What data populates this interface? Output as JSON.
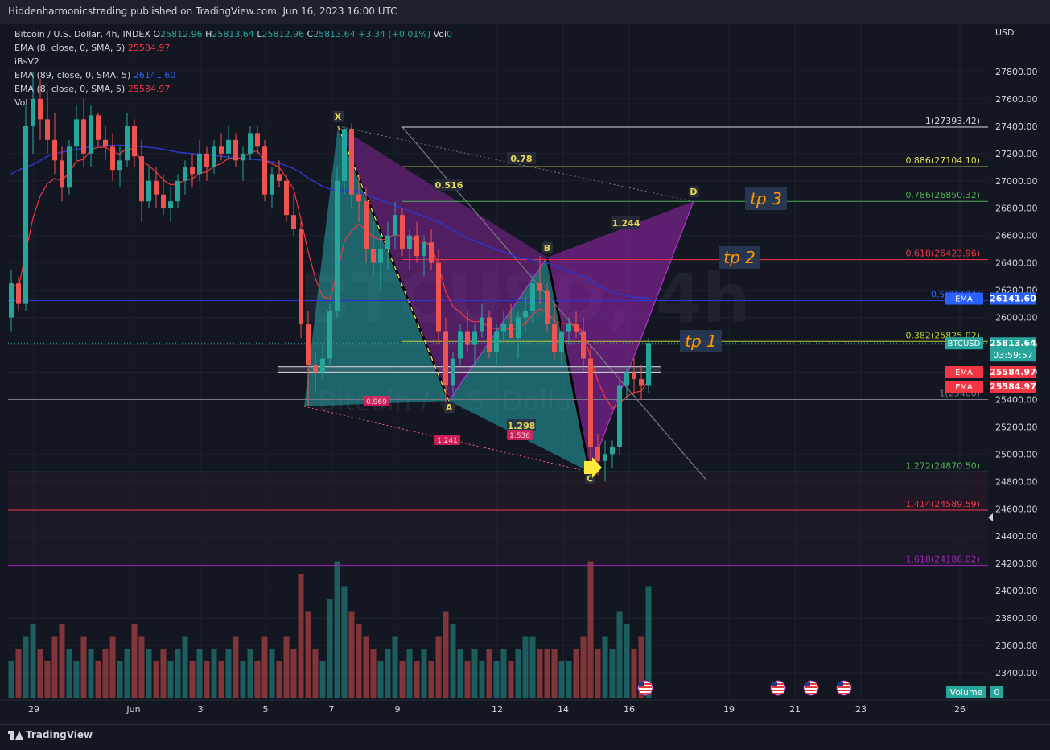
{
  "header": {
    "published": "Hiddenharmonicstrading published on TradingView.com, Jun 16, 2023 16:00 UTC"
  },
  "legend": {
    "symbol": "Bitcoin / U.S. Dollar, 4h, INDEX",
    "o_label": "O",
    "o_value": "25812.96",
    "h_label": "H",
    "h_value": "25813.64",
    "l_label": "L",
    "l_value": "25812.96",
    "c_label": "C",
    "c_value": "25813.64",
    "change": "+3.34 (+0.01%)",
    "vol_label": "Vol",
    "vol_value": "0",
    "ema1_label": "EMA (8, close, 0, SMA, 5)",
    "ema1_value": "25584.97",
    "ibs_label": "iBsV2",
    "ema2_label": "EMA (89, close, 0, SMA, 5)",
    "ema2_value": "26141.60",
    "ema3_label": "EMA (8, close, 0, SMA, 5)",
    "ema3_value": "25584.97",
    "vol2_label": "Vol",
    "vol2_value": "0"
  },
  "footer": {
    "brand": "TradingView"
  },
  "colors": {
    "background": "#131722",
    "up": "#26a69a",
    "down": "#ef5350",
    "ema89": "#2e35c9",
    "ema8": "#f23645",
    "pattern_cyan": "#26a6a6",
    "pattern_purple": "#9c27b0",
    "fib_white": "#d1d4dc",
    "fib_yellow": "#e5d85a",
    "fib_green": "#4caf50",
    "fib_red": "#f23645",
    "fib_purple": "#9c27b0",
    "target_orange": "#ff9800"
  },
  "watermark": {
    "symbol": "BTCUSD, 4h",
    "name": "Bitcoin / U.S. Dollar"
  },
  "chart_data": {
    "type": "candlestick",
    "symbol": "BTCUSD",
    "interval": "4h",
    "currency": "USD",
    "y_ticks": [
      "27800.00",
      "27600.00",
      "27400.00",
      "27200.00",
      "27000.00",
      "26800.00",
      "26600.00",
      "26400.00",
      "26200.00",
      "26000.00",
      "25800.00",
      "25600.00",
      "25400.00",
      "25200.00",
      "25000.00",
      "24800.00",
      "24600.00",
      "24400.00",
      "24200.00",
      "24000.00",
      "23800.00",
      "23600.00",
      "23400.00"
    ],
    "y_range": [
      23200,
      28100
    ],
    "x_labels": [
      "29",
      "Jun",
      "3",
      "5",
      "7",
      "9",
      "12",
      "14",
      "16",
      "19",
      "21",
      "23",
      "26"
    ],
    "price_tags": [
      {
        "label": "EMA",
        "value": "26141.60",
        "price": 26141.6,
        "color": "#2962ff"
      },
      {
        "label": "BTCUSD",
        "value": "25813.64",
        "sub": "03:59:57",
        "price": 25813.64,
        "color": "#26a69a"
      },
      {
        "label": "EMA",
        "value": "25584.97",
        "price": 25603,
        "color": "#f23645"
      },
      {
        "label": "EMA",
        "value": "25584.97",
        "price": 25497,
        "color": "#f23645"
      }
    ],
    "fib_levels": [
      {
        "label": "1(27393.42)",
        "price": 27393.42,
        "color": "#d1d4dc"
      },
      {
        "label": "0.886(27104.10)",
        "price": 27104.1,
        "color": "#e5d85a"
      },
      {
        "label": "0.786(26850.32)",
        "price": 26850.32,
        "color": "#4caf50"
      },
      {
        "label": "0.618(26423.96)",
        "price": 26423.96,
        "color": "#f23645"
      },
      {
        "label": "0.5(26124)",
        "price": 26124,
        "color": "#2962ff"
      },
      {
        "label": "0.382(25825.02)",
        "price": 25825.02,
        "color": "#c0ca33"
      },
      {
        "label": "1(25400)",
        "price": 25400,
        "color": "#787b86"
      },
      {
        "label": "1.272(24870.50)",
        "price": 24870.5,
        "color": "#4caf50"
      },
      {
        "label": "1.414(24589.59)",
        "price": 24589.59,
        "color": "#f23645"
      },
      {
        "label": "1.618(24186.02)",
        "price": 24186.02,
        "color": "#9c27b0"
      }
    ],
    "targets": [
      {
        "label": "tp 3",
        "price": 26840
      },
      {
        "label": "tp 2",
        "price": 26420
      },
      {
        "label": "tp 1",
        "price": 25805
      }
    ],
    "harmonic_points": [
      {
        "label": "X",
        "date": "Jun 7",
        "price": 27400
      },
      {
        "label": "A",
        "date": "Jun 10",
        "price": 25390
      },
      {
        "label": "B",
        "date": "Jun 13",
        "price": 26440
      },
      {
        "label": "C",
        "date": "Jun 15",
        "price": 24870
      },
      {
        "label": "D",
        "date": "Jun 18",
        "price": 26850
      }
    ],
    "ratios": [
      "0.516",
      "0.78",
      "1.244",
      "1.298"
    ],
    "abcd_ratios": [
      "0.969",
      "1.241",
      "1.536"
    ],
    "volume_label": "Volume",
    "volume_value": "0",
    "ohlc": [
      [
        26000,
        26350,
        25900,
        26250
      ],
      [
        26250,
        26300,
        26050,
        26100
      ],
      [
        26100,
        27550,
        26050,
        27400
      ],
      [
        27400,
        27800,
        27200,
        27600
      ],
      [
        27600,
        27750,
        27300,
        27450
      ],
      [
        27450,
        27650,
        27200,
        27300
      ],
      [
        27300,
        27500,
        27050,
        27150
      ],
      [
        27150,
        27250,
        26850,
        26950
      ],
      [
        26950,
        27300,
        26900,
        27250
      ],
      [
        27250,
        27550,
        27150,
        27450
      ],
      [
        27450,
        27600,
        27100,
        27200
      ],
      [
        27200,
        27550,
        27100,
        27480
      ],
      [
        27480,
        27500,
        27250,
        27300
      ],
      [
        27300,
        27400,
        27150,
        27250
      ],
      [
        27250,
        27350,
        27000,
        27080
      ],
      [
        27080,
        27250,
        26950,
        27150
      ],
      [
        27150,
        27500,
        27100,
        27400
      ],
      [
        27400,
        27450,
        27100,
        27180
      ],
      [
        27180,
        27300,
        26700,
        26850
      ],
      [
        26850,
        27100,
        26800,
        27000
      ],
      [
        27000,
        27100,
        26800,
        26900
      ],
      [
        26900,
        27050,
        26750,
        26800
      ],
      [
        26800,
        26950,
        26700,
        26850
      ],
      [
        26850,
        27050,
        26800,
        27000
      ],
      [
        27000,
        27150,
        26900,
        27100
      ],
      [
        27100,
        27200,
        26950,
        27050
      ],
      [
        27050,
        27300,
        27000,
        27200
      ],
      [
        27200,
        27250,
        27000,
        27100
      ],
      [
        27100,
        27300,
        27050,
        27250
      ],
      [
        27250,
        27350,
        27150,
        27200
      ],
      [
        27200,
        27400,
        27150,
        27300
      ],
      [
        27300,
        27350,
        27100,
        27150
      ],
      [
        27150,
        27250,
        27000,
        27200
      ],
      [
        27200,
        27400,
        27150,
        27350
      ],
      [
        27350,
        27400,
        27200,
        27250
      ],
      [
        27250,
        27300,
        26850,
        26900
      ],
      [
        26900,
        27100,
        26800,
        27050
      ],
      [
        27050,
        27150,
        26950,
        27000
      ],
      [
        27000,
        27050,
        26700,
        26750
      ],
      [
        26750,
        26900,
        26600,
        26650
      ],
      [
        26650,
        26700,
        25850,
        25950
      ],
      [
        25950,
        26050,
        25350,
        25650
      ],
      [
        25650,
        25750,
        25450,
        25600
      ],
      [
        25600,
        25800,
        25550,
        25700
      ],
      [
        25700,
        26100,
        25650,
        26050
      ],
      [
        26050,
        27100,
        26000,
        27000
      ],
      [
        27000,
        27400,
        26900,
        27380
      ],
      [
        27380,
        27420,
        26800,
        26900
      ],
      [
        26900,
        27050,
        26700,
        26850
      ],
      [
        26850,
        26950,
        26400,
        26500
      ],
      [
        26500,
        26700,
        26300,
        26400
      ],
      [
        26400,
        26600,
        26200,
        26500
      ],
      [
        26500,
        26700,
        26350,
        26600
      ],
      [
        26600,
        26850,
        26500,
        26750
      ],
      [
        26750,
        26800,
        26450,
        26500
      ],
      [
        26500,
        26650,
        26350,
        26600
      ],
      [
        26600,
        26700,
        26400,
        26450
      ],
      [
        26450,
        26600,
        26300,
        26550
      ],
      [
        26550,
        26650,
        26350,
        26400
      ],
      [
        26400,
        26500,
        25800,
        25900
      ],
      [
        25900,
        26000,
        25350,
        25500
      ],
      [
        25500,
        25750,
        25450,
        25700
      ],
      [
        25700,
        25950,
        25650,
        25900
      ],
      [
        25900,
        26050,
        25750,
        25800
      ],
      [
        25800,
        25950,
        25650,
        25900
      ],
      [
        25900,
        26100,
        25850,
        26000
      ],
      [
        26000,
        26050,
        25700,
        25750
      ],
      [
        25750,
        25950,
        25650,
        25900
      ],
      [
        25900,
        26050,
        25800,
        25950
      ],
      [
        25950,
        26100,
        25850,
        25850
      ],
      [
        25850,
        26050,
        25700,
        26000
      ],
      [
        26000,
        26150,
        25900,
        26050
      ],
      [
        26050,
        26300,
        25950,
        26250
      ],
      [
        26250,
        26450,
        26100,
        26200
      ],
      [
        26200,
        26250,
        25900,
        25950
      ],
      [
        25950,
        26100,
        25700,
        25750
      ],
      [
        25750,
        25950,
        25650,
        25900
      ],
      [
        25900,
        26000,
        25800,
        25950
      ],
      [
        25950,
        26050,
        25850,
        25900
      ],
      [
        25900,
        26000,
        25600,
        25700
      ],
      [
        25700,
        25800,
        24900,
        25050
      ],
      [
        25050,
        25150,
        24850,
        24950
      ],
      [
        24950,
        25100,
        24800,
        25000
      ],
      [
        25000,
        25100,
        24900,
        25050
      ],
      [
        25050,
        25550,
        25000,
        25500
      ],
      [
        25500,
        25650,
        25400,
        25600
      ],
      [
        25600,
        25700,
        25450,
        25550
      ],
      [
        25550,
        25650,
        25400,
        25500
      ],
      [
        25500,
        25850,
        25450,
        25813
      ]
    ],
    "ema89": [
      27050,
      27080,
      27100,
      27120,
      27150,
      27180,
      27200,
      27210,
      27220,
      27230,
      27240,
      27250,
      27255,
      27260,
      27260,
      27260,
      27260,
      27255,
      27250,
      27245,
      27240,
      27230,
      27220,
      27210,
      27205,
      27200,
      27195,
      27190,
      27185,
      27180,
      27175,
      27170,
      27165,
      27160,
      27155,
      27150,
      27140,
      27130,
      27110,
      27090,
      27060,
      27020,
      26990,
      26960,
      26940,
      26930,
      26930,
      26930,
      26920,
      26900,
      26880,
      26860,
      26840,
      26820,
      26800,
      26780,
      26760,
      26740,
      26720,
      26700,
      26670,
      26640,
      26610,
      26580,
      26560,
      26540,
      26520,
      26500,
      26480,
      26460,
      26440,
      26430,
      26420,
      26410,
      26400,
      26380,
      26360,
      26340,
      26320,
      26300,
      26270,
      26240,
      26210,
      26190,
      26170,
      26160,
      26150,
      26145,
      26142
    ],
    "volume": [
      3,
      4,
      5,
      6,
      4,
      3,
      5,
      6,
      4,
      3,
      5,
      4,
      3,
      4,
      5,
      3,
      4,
      6,
      5,
      4,
      3,
      4,
      3,
      4,
      5,
      3,
      4,
      3,
      4,
      3,
      4,
      5,
      3,
      4,
      3,
      5,
      4,
      3,
      5,
      4,
      10,
      7,
      4,
      3,
      8,
      11,
      9,
      7,
      6,
      5,
      4,
      3,
      4,
      5,
      3,
      4,
      3,
      4,
      3,
      5,
      7,
      6,
      4,
      3,
      4,
      3,
      4,
      3,
      4,
      3,
      4,
      5,
      5,
      4,
      4,
      4,
      3,
      3,
      4,
      5,
      11,
      4,
      5,
      4,
      7,
      6,
      4,
      5,
      9
    ]
  }
}
